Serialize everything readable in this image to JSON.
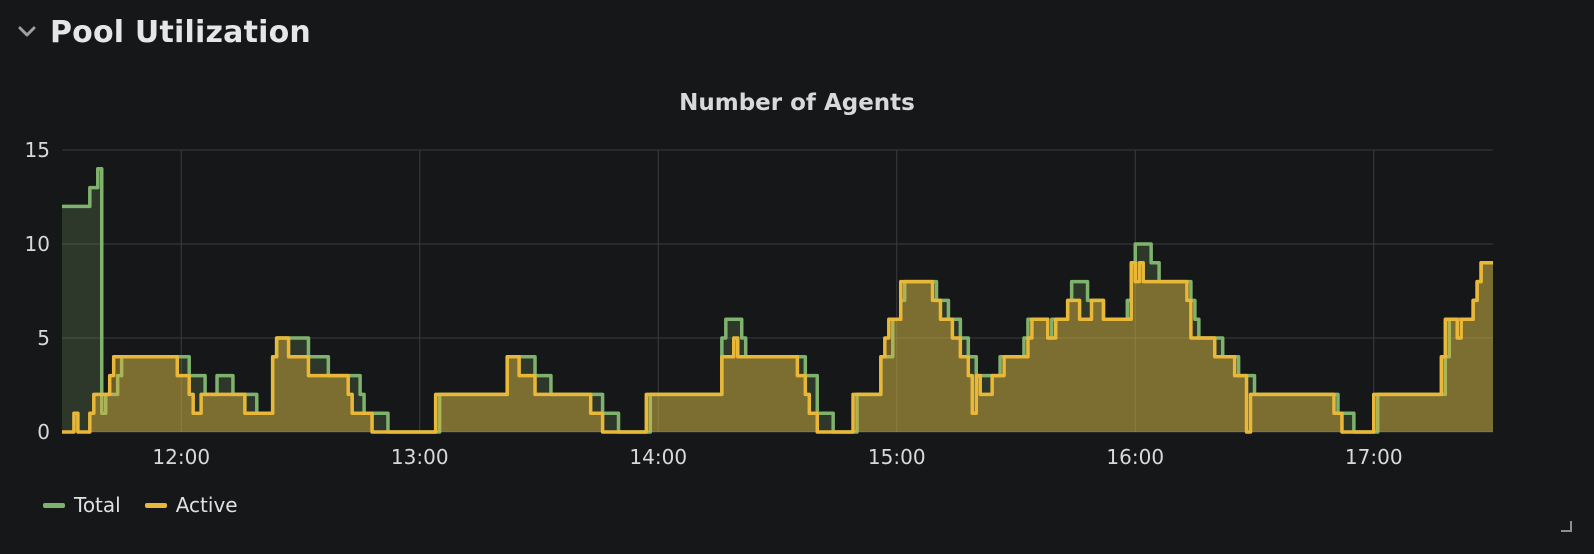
{
  "row": {
    "title": "Pool Utilization"
  },
  "panel": {
    "title": "Number of Agents"
  },
  "colors": {
    "total": "#7eb26d",
    "active": "#eab839",
    "grid": "#3a3b3e",
    "text": "#d8d9da"
  },
  "icons": {
    "collapse": "chevron-down-icon",
    "resize": "resize-handle-icon"
  },
  "chart_data": {
    "type": "area",
    "title": "Number of Agents",
    "xlabel": "",
    "ylabel": "",
    "xlim": [
      "11:30",
      "17:30"
    ],
    "ylim": [
      0,
      15
    ],
    "x_ticks": [
      "12:00",
      "13:00",
      "14:00",
      "15:00",
      "16:00",
      "17:00"
    ],
    "y_ticks": [
      "0",
      "5",
      "10",
      "15"
    ],
    "grid": true,
    "legend": "bottom-left",
    "interpolation": "step",
    "series": [
      {
        "name": "Total",
        "color": "#7eb26d",
        "points": [
          [
            "11:30",
            12
          ],
          [
            "11:36",
            12
          ],
          [
            "11:37",
            13
          ],
          [
            "11:38",
            13
          ],
          [
            "11:39",
            14
          ],
          [
            "11:40",
            1
          ],
          [
            "11:41",
            2
          ],
          [
            "11:43",
            2
          ],
          [
            "11:44",
            3
          ],
          [
            "11:45",
            4
          ],
          [
            "11:58",
            4
          ],
          [
            "11:59",
            4
          ],
          [
            "12:01",
            4
          ],
          [
            "12:02",
            3
          ],
          [
            "12:05",
            3
          ],
          [
            "12:06",
            2
          ],
          [
            "12:08",
            2
          ],
          [
            "12:09",
            3
          ],
          [
            "12:12",
            3
          ],
          [
            "12:13",
            2
          ],
          [
            "12:18",
            2
          ],
          [
            "12:19",
            1
          ],
          [
            "12:22",
            1
          ],
          [
            "12:23",
            4
          ],
          [
            "12:24",
            5
          ],
          [
            "12:31",
            5
          ],
          [
            "12:32",
            4
          ],
          [
            "12:36",
            4
          ],
          [
            "12:37",
            3
          ],
          [
            "12:44",
            3
          ],
          [
            "12:45",
            2
          ],
          [
            "12:46",
            1
          ],
          [
            "12:51",
            1
          ],
          [
            "12:52",
            0
          ],
          [
            "13:04",
            0
          ],
          [
            "13:05",
            2
          ],
          [
            "13:21",
            2
          ],
          [
            "13:22",
            4
          ],
          [
            "13:28",
            4
          ],
          [
            "13:29",
            3
          ],
          [
            "13:32",
            3
          ],
          [
            "13:33",
            2
          ],
          [
            "13:45",
            2
          ],
          [
            "13:46",
            1
          ],
          [
            "13:49",
            1
          ],
          [
            "13:50",
            0
          ],
          [
            "13:57",
            0
          ],
          [
            "13:58",
            2
          ],
          [
            "14:15",
            2
          ],
          [
            "14:16",
            5
          ],
          [
            "14:17",
            6
          ],
          [
            "14:20",
            6
          ],
          [
            "14:21",
            5
          ],
          [
            "14:22",
            4
          ],
          [
            "14:36",
            4
          ],
          [
            "14:37",
            3
          ],
          [
            "14:39",
            3
          ],
          [
            "14:40",
            1
          ],
          [
            "14:43",
            1
          ],
          [
            "14:44",
            0
          ],
          [
            "14:49",
            0
          ],
          [
            "14:50",
            2
          ],
          [
            "14:55",
            2
          ],
          [
            "14:56",
            4
          ],
          [
            "14:58",
            4
          ],
          [
            "14:59",
            6
          ],
          [
            "15:00",
            6
          ],
          [
            "15:01",
            7
          ],
          [
            "15:02",
            8
          ],
          [
            "15:09",
            8
          ],
          [
            "15:10",
            7
          ],
          [
            "15:12",
            7
          ],
          [
            "15:13",
            6
          ],
          [
            "15:15",
            6
          ],
          [
            "15:16",
            5
          ],
          [
            "15:18",
            4
          ],
          [
            "15:20",
            3
          ],
          [
            "15:25",
            3
          ],
          [
            "15:26",
            4
          ],
          [
            "15:31",
            4
          ],
          [
            "15:32",
            5
          ],
          [
            "15:33",
            6
          ],
          [
            "15:37",
            6
          ],
          [
            "15:38",
            5
          ],
          [
            "15:39",
            6
          ],
          [
            "15:42",
            6
          ],
          [
            "15:43",
            7
          ],
          [
            "15:44",
            8
          ],
          [
            "15:47",
            8
          ],
          [
            "15:48",
            7
          ],
          [
            "15:51",
            7
          ],
          [
            "15:52",
            6
          ],
          [
            "15:57",
            6
          ],
          [
            "15:58",
            7
          ],
          [
            "15:59",
            9
          ],
          [
            "16:00",
            10
          ],
          [
            "16:03",
            10
          ],
          [
            "16:04",
            9
          ],
          [
            "16:05",
            9
          ],
          [
            "16:06",
            8
          ],
          [
            "16:13",
            8
          ],
          [
            "16:14",
            7
          ],
          [
            "16:15",
            6
          ],
          [
            "16:16",
            5
          ],
          [
            "16:21",
            5
          ],
          [
            "16:22",
            4
          ],
          [
            "16:25",
            4
          ],
          [
            "16:26",
            3
          ],
          [
            "16:29",
            3
          ],
          [
            "16:30",
            2
          ],
          [
            "16:50",
            2
          ],
          [
            "16:51",
            1
          ],
          [
            "16:54",
            1
          ],
          [
            "16:55",
            0
          ],
          [
            "17:00",
            0
          ],
          [
            "17:01",
            2
          ],
          [
            "17:17",
            2
          ],
          [
            "17:18",
            4
          ],
          [
            "17:19",
            6
          ],
          [
            "17:24",
            6
          ],
          [
            "17:25",
            7
          ],
          [
            "17:26",
            8
          ],
          [
            "17:27",
            9
          ],
          [
            "17:30",
            9
          ]
        ]
      },
      {
        "name": "Active",
        "color": "#eab839",
        "points": [
          [
            "11:30",
            0
          ],
          [
            "11:33",
            0
          ],
          [
            "11:33",
            1
          ],
          [
            "11:34",
            0
          ],
          [
            "11:36",
            0
          ],
          [
            "11:37",
            1
          ],
          [
            "11:38",
            2
          ],
          [
            "11:41",
            2
          ],
          [
            "11:42",
            3
          ],
          [
            "11:43",
            4
          ],
          [
            "11:58",
            4
          ],
          [
            "11:59",
            3
          ],
          [
            "12:01",
            3
          ],
          [
            "12:02",
            2
          ],
          [
            "12:03",
            1
          ],
          [
            "12:04",
            1
          ],
          [
            "12:05",
            2
          ],
          [
            "12:15",
            2
          ],
          [
            "12:16",
            1
          ],
          [
            "12:22",
            1
          ],
          [
            "12:23",
            4
          ],
          [
            "12:24",
            5
          ],
          [
            "12:26",
            5
          ],
          [
            "12:27",
            4
          ],
          [
            "12:31",
            4
          ],
          [
            "12:32",
            3
          ],
          [
            "12:41",
            3
          ],
          [
            "12:42",
            2
          ],
          [
            "12:43",
            1
          ],
          [
            "12:47",
            1
          ],
          [
            "12:48",
            0
          ],
          [
            "13:03",
            0
          ],
          [
            "13:04",
            2
          ],
          [
            "13:21",
            2
          ],
          [
            "13:22",
            4
          ],
          [
            "13:24",
            4
          ],
          [
            "13:25",
            3
          ],
          [
            "13:28",
            3
          ],
          [
            "13:29",
            2
          ],
          [
            "13:42",
            2
          ],
          [
            "13:43",
            1
          ],
          [
            "13:45",
            1
          ],
          [
            "13:46",
            0
          ],
          [
            "13:56",
            0
          ],
          [
            "13:57",
            2
          ],
          [
            "14:15",
            2
          ],
          [
            "14:16",
            4
          ],
          [
            "14:18",
            4
          ],
          [
            "14:19",
            5
          ],
          [
            "14:20",
            4
          ],
          [
            "14:34",
            4
          ],
          [
            "14:35",
            3
          ],
          [
            "14:36",
            3
          ],
          [
            "14:37",
            2
          ],
          [
            "14:38",
            1
          ],
          [
            "14:39",
            1
          ],
          [
            "14:40",
            0
          ],
          [
            "14:48",
            0
          ],
          [
            "14:49",
            2
          ],
          [
            "14:55",
            2
          ],
          [
            "14:56",
            4
          ],
          [
            "14:57",
            5
          ],
          [
            "14:58",
            6
          ],
          [
            "15:00",
            6
          ],
          [
            "15:01",
            8
          ],
          [
            "15:08",
            8
          ],
          [
            "15:09",
            7
          ],
          [
            "15:10",
            7
          ],
          [
            "15:11",
            6
          ],
          [
            "15:13",
            6
          ],
          [
            "15:14",
            5
          ],
          [
            "15:16",
            4
          ],
          [
            "15:18",
            3
          ],
          [
            "15:19",
            1
          ],
          [
            "15:20",
            3
          ],
          [
            "15:21",
            2
          ],
          [
            "15:23",
            2
          ],
          [
            "15:24",
            3
          ],
          [
            "15:26",
            3
          ],
          [
            "15:27",
            4
          ],
          [
            "15:32",
            4
          ],
          [
            "15:33",
            5
          ],
          [
            "15:34",
            6
          ],
          [
            "15:37",
            6
          ],
          [
            "15:38",
            5
          ],
          [
            "15:39",
            5
          ],
          [
            "15:40",
            6
          ],
          [
            "15:42",
            6
          ],
          [
            "15:43",
            7
          ],
          [
            "15:45",
            7
          ],
          [
            "15:46",
            6
          ],
          [
            "15:48",
            6
          ],
          [
            "15:49",
            7
          ],
          [
            "15:51",
            7
          ],
          [
            "15:52",
            6
          ],
          [
            "15:58",
            6
          ],
          [
            "15:59",
            9
          ],
          [
            "16:00",
            8
          ],
          [
            "16:01",
            9
          ],
          [
            "16:02",
            8
          ],
          [
            "16:12",
            8
          ],
          [
            "16:13",
            7
          ],
          [
            "16:14",
            5
          ],
          [
            "16:19",
            5
          ],
          [
            "16:20",
            4
          ],
          [
            "16:24",
            4
          ],
          [
            "16:25",
            3
          ],
          [
            "16:27",
            3
          ],
          [
            "16:28",
            0
          ],
          [
            "16:29",
            2
          ],
          [
            "16:49",
            2
          ],
          [
            "16:50",
            1
          ],
          [
            "16:51",
            1
          ],
          [
            "16:52",
            0
          ],
          [
            "16:59",
            0
          ],
          [
            "17:00",
            2
          ],
          [
            "17:16",
            2
          ],
          [
            "17:17",
            4
          ],
          [
            "17:18",
            6
          ],
          [
            "17:20",
            6
          ],
          [
            "17:21",
            5
          ],
          [
            "17:22",
            6
          ],
          [
            "17:24",
            6
          ],
          [
            "17:25",
            7
          ],
          [
            "17:26",
            8
          ],
          [
            "17:27",
            9
          ],
          [
            "17:30",
            9
          ]
        ]
      }
    ]
  }
}
